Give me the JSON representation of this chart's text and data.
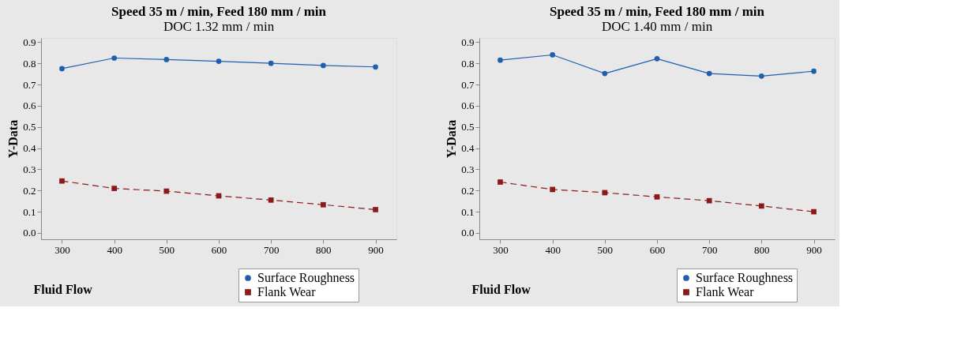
{
  "chart_data": [
    {
      "type": "line",
      "title": "Speed 35 m / min, Feed 180 mm / min",
      "subtitle": "DOC 1.32 mm / min",
      "xlabel": "Fluid Flow",
      "ylabel": "Y-Data",
      "x": [
        300,
        400,
        500,
        600,
        700,
        800,
        900
      ],
      "series": [
        {
          "name": "Surface Roughness",
          "color": "#1f5fae",
          "marker": "circle",
          "line_style": "solid",
          "values": [
            0.775,
            0.825,
            0.818,
            0.81,
            0.8,
            0.79,
            0.783
          ]
        },
        {
          "name": "Flank Wear",
          "color": "#8b1a1a",
          "marker": "square",
          "line_style": "dashed",
          "values": [
            0.245,
            0.21,
            0.197,
            0.175,
            0.155,
            0.133,
            0.11
          ]
        }
      ],
      "xlim": [
        260,
        940
      ],
      "xticks": [
        300,
        400,
        500,
        600,
        700,
        800,
        900
      ],
      "ylim": [
        -0.03,
        0.92
      ],
      "yticks": [
        {
          "value": 0,
          "label": "0.0"
        },
        0.1,
        0.2,
        0.3,
        0.4,
        0.5,
        0.6,
        0.7,
        0.8,
        0.9
      ],
      "grid": false,
      "legend": "bottom right"
    },
    {
      "type": "line",
      "title": "Speed 35 m / min, Feed 180 mm / min",
      "subtitle": "DOC 1.40 mm / min",
      "xlabel": "Fluid Flow",
      "ylabel": "Y-Data",
      "x": [
        300,
        400,
        500,
        600,
        700,
        800,
        900
      ],
      "series": [
        {
          "name": "Surface Roughness",
          "color": "#1f5fae",
          "marker": "circle",
          "line_style": "solid",
          "values": [
            0.815,
            0.84,
            0.752,
            0.822,
            0.752,
            0.74,
            0.763
          ]
        },
        {
          "name": "Flank Wear",
          "color": "#8b1a1a",
          "marker": "square",
          "line_style": "dashed",
          "values": [
            0.24,
            0.205,
            0.19,
            0.17,
            0.152,
            0.127,
            0.1
          ]
        }
      ],
      "xlim": [
        260,
        940
      ],
      "xticks": [
        300,
        400,
        500,
        600,
        700,
        800,
        900
      ],
      "ylim": [
        -0.03,
        0.92
      ],
      "yticks": [
        {
          "value": 0,
          "label": "0.0"
        },
        0.1,
        0.2,
        0.3,
        0.4,
        0.5,
        0.6,
        0.7,
        0.8,
        0.9
      ],
      "grid": false,
      "legend": "bottom right"
    }
  ]
}
